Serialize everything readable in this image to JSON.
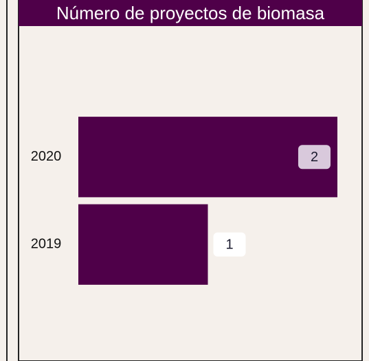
{
  "chart_data": {
    "type": "barh",
    "title": "Número de proyectos de biomasa",
    "categories": [
      "2020",
      "2019"
    ],
    "values": [
      2,
      1
    ],
    "color": "#4f0049",
    "xlim": [
      0,
      2
    ]
  }
}
